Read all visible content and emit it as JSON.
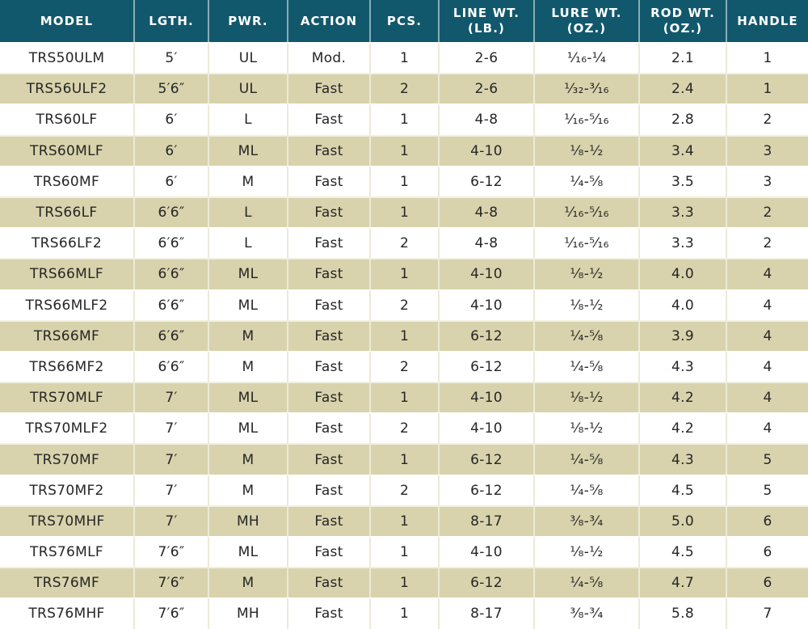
{
  "colors": {
    "header_bg": "#12586C",
    "header_text": "#FFFFFF",
    "row_bg": "#FFFFFF",
    "row_alt_bg": "#D8D3AC",
    "body_text": "#262626",
    "divider": "#ECE9D8"
  },
  "chart_data": {
    "type": "table",
    "columns": [
      {
        "key": "model",
        "label": "MODEL",
        "sublabel": ""
      },
      {
        "key": "length",
        "label": "LGTH.",
        "sublabel": ""
      },
      {
        "key": "power",
        "label": "PWR.",
        "sublabel": ""
      },
      {
        "key": "action",
        "label": "ACTION",
        "sublabel": ""
      },
      {
        "key": "pieces",
        "label": "PCS.",
        "sublabel": ""
      },
      {
        "key": "line_wt",
        "label": "LINE WT.",
        "sublabel": "(LB.)"
      },
      {
        "key": "lure_wt",
        "label": "LURE WT.",
        "sublabel": "(OZ.)"
      },
      {
        "key": "rod_wt",
        "label": "ROD WT.",
        "sublabel": "(OZ.)"
      },
      {
        "key": "handle",
        "label": "HANDLE",
        "sublabel": ""
      }
    ],
    "rows": [
      [
        "TRS50ULM",
        "5′",
        "UL",
        "Mod.",
        "1",
        "2-6",
        "¹⁄₁₆-¹⁄₄",
        "2.1",
        "1"
      ],
      [
        "TRS56ULF2",
        "5′6″",
        "UL",
        "Fast",
        "2",
        "2-6",
        "¹⁄₃₂-³⁄₁₆",
        "2.4",
        "1"
      ],
      [
        "TRS60LF",
        "6′",
        "L",
        "Fast",
        "1",
        "4-8",
        "¹⁄₁₆-⁵⁄₁₆",
        "2.8",
        "2"
      ],
      [
        "TRS60MLF",
        "6′",
        "ML",
        "Fast",
        "1",
        "4-10",
        "¹⁄₈-¹⁄₂",
        "3.4",
        "3"
      ],
      [
        "TRS60MF",
        "6′",
        "M",
        "Fast",
        "1",
        "6-12",
        "¹⁄₄-⁵⁄₈",
        "3.5",
        "3"
      ],
      [
        "TRS66LF",
        "6′6″",
        "L",
        "Fast",
        "1",
        "4-8",
        "¹⁄₁₆-⁵⁄₁₆",
        "3.3",
        "2"
      ],
      [
        "TRS66LF2",
        "6′6″",
        "L",
        "Fast",
        "2",
        "4-8",
        "¹⁄₁₆-⁵⁄₁₆",
        "3.3",
        "2"
      ],
      [
        "TRS66MLF",
        "6′6″",
        "ML",
        "Fast",
        "1",
        "4-10",
        "¹⁄₈-¹⁄₂",
        "4.0",
        "4"
      ],
      [
        "TRS66MLF2",
        "6′6″",
        "ML",
        "Fast",
        "2",
        "4-10",
        "¹⁄₈-¹⁄₂",
        "4.0",
        "4"
      ],
      [
        "TRS66MF",
        "6′6″",
        "M",
        "Fast",
        "1",
        "6-12",
        "¹⁄₄-⁵⁄₈",
        "3.9",
        "4"
      ],
      [
        "TRS66MF2",
        "6′6″",
        "M",
        "Fast",
        "2",
        "6-12",
        "¹⁄₄-⁵⁄₈",
        "4.3",
        "4"
      ],
      [
        "TRS70MLF",
        "7′",
        "ML",
        "Fast",
        "1",
        "4-10",
        "¹⁄₈-¹⁄₂",
        "4.2",
        "4"
      ],
      [
        "TRS70MLF2",
        "7′",
        "ML",
        "Fast",
        "2",
        "4-10",
        "¹⁄₈-¹⁄₂",
        "4.2",
        "4"
      ],
      [
        "TRS70MF",
        "7′",
        "M",
        "Fast",
        "1",
        "6-12",
        "¹⁄₄-⁵⁄₈",
        "4.3",
        "5"
      ],
      [
        "TRS70MF2",
        "7′",
        "M",
        "Fast",
        "2",
        "6-12",
        "¹⁄₄-⁵⁄₈",
        "4.5",
        "5"
      ],
      [
        "TRS70MHF",
        "7′",
        "MH",
        "Fast",
        "1",
        "8-17",
        "³⁄₈-³⁄₄",
        "5.0",
        "6"
      ],
      [
        "TRS76MLF",
        "7′6″",
        "ML",
        "Fast",
        "1",
        "4-10",
        "¹⁄₈-¹⁄₂",
        "4.5",
        "6"
      ],
      [
        "TRS76MF",
        "7′6″",
        "M",
        "Fast",
        "1",
        "6-12",
        "¹⁄₄-⁵⁄₈",
        "4.7",
        "6"
      ],
      [
        "TRS76MHF",
        "7′6″",
        "MH",
        "Fast",
        "1",
        "8-17",
        "³⁄₈-³⁄₄",
        "5.8",
        "7"
      ]
    ]
  }
}
